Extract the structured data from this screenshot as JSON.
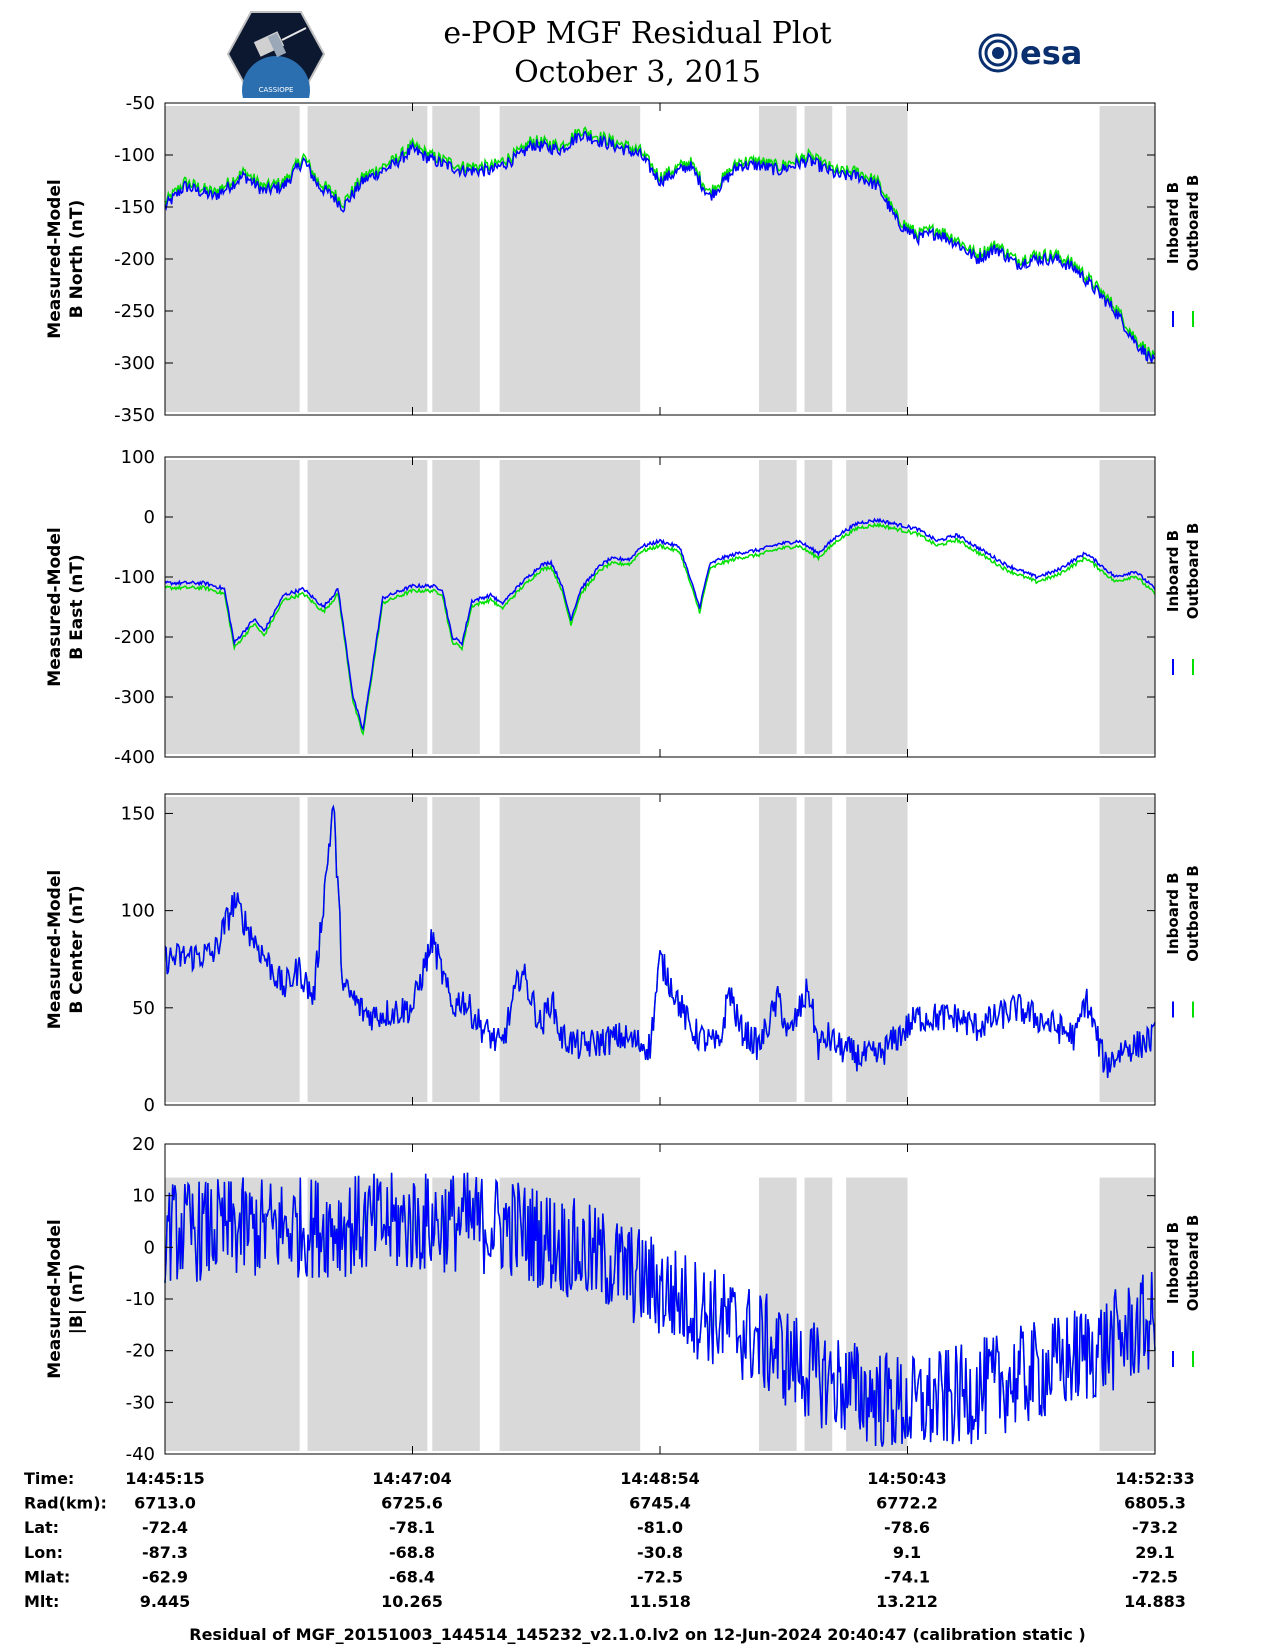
{
  "header": {
    "title_line1": "e-POP MGF Residual Plot",
    "title_line2": "October 3, 2015",
    "esa_logo_text": "esa",
    "cassiope_logo_text": "CASSIOPE"
  },
  "colors": {
    "inboard": "#0000ff",
    "outboard": "#00e000",
    "shade": "#d9d9d9"
  },
  "chart_data": [
    {
      "id": "north",
      "type": "line",
      "ylabel_line1": "Measured-Model",
      "ylabel_line2": "B North (nT)",
      "ylim": [
        -350,
        -50
      ],
      "yticks": [
        -50,
        -100,
        -150,
        -200,
        -250,
        -300,
        -350
      ],
      "legend": [
        "Inboard B",
        "Outboard B"
      ],
      "outboard_offset": 4,
      "noise": 6,
      "series_x": [
        0,
        0.02,
        0.05,
        0.08,
        0.1,
        0.12,
        0.14,
        0.155,
        0.17,
        0.18,
        0.2,
        0.23,
        0.25,
        0.27,
        0.3,
        0.33,
        0.36,
        0.37,
        0.4,
        0.42,
        0.45,
        0.48,
        0.5,
        0.53,
        0.55,
        0.58,
        0.6,
        0.62,
        0.65,
        0.68,
        0.7,
        0.72,
        0.74,
        0.76,
        0.78,
        0.8,
        0.82,
        0.84,
        0.86,
        0.88,
        0.9,
        0.92,
        0.94,
        0.96,
        0.98,
        1.0
      ],
      "series_y": [
        -150,
        -130,
        -140,
        -120,
        -135,
        -130,
        -105,
        -130,
        -140,
        -150,
        -125,
        -110,
        -95,
        -105,
        -115,
        -115,
        -100,
        -90,
        -95,
        -80,
        -90,
        -100,
        -125,
        -110,
        -140,
        -110,
        -110,
        -115,
        -105,
        -120,
        -120,
        -130,
        -165,
        -180,
        -175,
        -185,
        -200,
        -190,
        -205,
        -200,
        -200,
        -210,
        -230,
        -250,
        -280,
        -300
      ]
    },
    {
      "id": "east",
      "type": "line",
      "ylabel_line1": "Measured-Model",
      "ylabel_line2": "B East (nT)",
      "ylim": [
        -400,
        100
      ],
      "yticks": [
        100,
        0,
        -100,
        -200,
        -300,
        -400
      ],
      "legend": [
        "Inboard B",
        "Outboard B"
      ],
      "outboard_offset": -8,
      "noise": 3,
      "series_x": [
        0,
        0.04,
        0.06,
        0.07,
        0.09,
        0.1,
        0.12,
        0.14,
        0.16,
        0.175,
        0.19,
        0.2,
        0.22,
        0.25,
        0.27,
        0.28,
        0.29,
        0.3,
        0.31,
        0.33,
        0.34,
        0.36,
        0.38,
        0.39,
        0.4,
        0.41,
        0.42,
        0.44,
        0.45,
        0.47,
        0.48,
        0.5,
        0.52,
        0.54,
        0.55,
        0.56,
        0.58,
        0.6,
        0.62,
        0.64,
        0.66,
        0.68,
        0.7,
        0.72,
        0.76,
        0.78,
        0.8,
        0.82,
        0.85,
        0.88,
        0.9,
        0.93,
        0.96,
        0.98,
        1.0
      ],
      "series_y": [
        -110,
        -110,
        -120,
        -210,
        -170,
        -190,
        -130,
        -120,
        -150,
        -120,
        -300,
        -355,
        -135,
        -115,
        -115,
        -120,
        -200,
        -210,
        -140,
        -130,
        -145,
        -110,
        -80,
        -75,
        -110,
        -170,
        -120,
        -80,
        -70,
        -70,
        -50,
        -40,
        -50,
        -150,
        -80,
        -70,
        -60,
        -55,
        -45,
        -40,
        -60,
        -30,
        -10,
        -5,
        -20,
        -40,
        -30,
        -50,
        -80,
        -100,
        -90,
        -60,
        -100,
        -90,
        -120
      ]
    },
    {
      "id": "center",
      "type": "line",
      "ylabel_line1": "Measured-Model",
      "ylabel_line2": "B Center (nT)",
      "ylim": [
        0,
        160
      ],
      "yticks": [
        150,
        100,
        50,
        0
      ],
      "legend": [
        "Inboard B",
        "Outboard B"
      ],
      "outboard_offset": 0,
      "noise": 8,
      "series_x": [
        0,
        0.05,
        0.07,
        0.09,
        0.12,
        0.135,
        0.15,
        0.17,
        0.18,
        0.19,
        0.2,
        0.21,
        0.25,
        0.27,
        0.29,
        0.3,
        0.32,
        0.34,
        0.36,
        0.38,
        0.39,
        0.4,
        0.42,
        0.46,
        0.49,
        0.5,
        0.53,
        0.54,
        0.56,
        0.57,
        0.58,
        0.6,
        0.62,
        0.63,
        0.65,
        0.66,
        0.67,
        0.68,
        0.7,
        0.72,
        0.74,
        0.76,
        0.8,
        0.82,
        0.86,
        0.9,
        0.92,
        0.93,
        0.95,
        0.97,
        0.98,
        1.0
      ],
      "series_y": [
        75,
        78,
        105,
        85,
        60,
        70,
        55,
        155,
        60,
        55,
        48,
        46,
        50,
        85,
        50,
        55,
        40,
        30,
        70,
        40,
        55,
        35,
        30,
        35,
        30,
        75,
        40,
        35,
        30,
        60,
        40,
        30,
        55,
        35,
        60,
        30,
        35,
        30,
        25,
        25,
        35,
        45,
        45,
        40,
        50,
        40,
        35,
        55,
        20,
        30,
        30,
        35
      ]
    },
    {
      "id": "bmag",
      "type": "line",
      "ylabel_line1": "Measured-Model",
      "ylabel_line2": "|B| (nT)",
      "ylim": [
        -40,
        20
      ],
      "yticks": [
        20,
        10,
        0,
        -10,
        -20,
        -30,
        -40
      ],
      "legend": [
        "Inboard B",
        "Outboard B"
      ],
      "outboard_offset": 0,
      "noise": 10,
      "series_x": [
        0,
        0.15,
        0.3,
        0.35,
        0.45,
        0.5,
        0.6,
        0.65,
        0.7,
        0.75,
        0.8,
        0.85,
        0.9,
        0.95,
        1.0
      ],
      "series_y": [
        3,
        4,
        5,
        4,
        -3,
        -8,
        -18,
        -24,
        -28,
        -31,
        -29,
        -26,
        -23,
        -19,
        -14
      ]
    }
  ],
  "gray_spans": [
    [
      0,
      0.136
    ],
    [
      0.144,
      0.265
    ],
    [
      0.27,
      0.318
    ],
    [
      0.338,
      0.48
    ],
    [
      0.6,
      0.638
    ],
    [
      0.646,
      0.674
    ],
    [
      0.688,
      0.75
    ],
    [
      0.944,
      1.0
    ]
  ],
  "time_ticks": [
    "14:45:15",
    "14:47:04",
    "14:48:54",
    "14:50:43",
    "14:52:33"
  ],
  "ephemeris": {
    "labels": [
      "Time:",
      "Rad(km):",
      "Lat:",
      "Lon:",
      "Mlat:",
      "Mlt:"
    ],
    "rows": [
      [
        "14:45:15",
        "14:47:04",
        "14:48:54",
        "14:50:43",
        "14:52:33"
      ],
      [
        "6713.0",
        "6725.6",
        "6745.4",
        "6772.2",
        "6805.3"
      ],
      [
        "-72.4",
        "-78.1",
        "-81.0",
        "-78.6",
        "-73.2"
      ],
      [
        "-87.3",
        "-68.8",
        "-30.8",
        "9.1",
        "29.1"
      ],
      [
        "-62.9",
        "-68.4",
        "-72.5",
        "-74.1",
        "-72.5"
      ],
      [
        "9.445",
        "10.265",
        "11.518",
        "13.212",
        "14.883"
      ]
    ]
  },
  "footer": "Residual of MGF_20151003_144514_145232_v2.1.0.lv2 on 12-Jun-2024 20:40:47 (calibration static )"
}
